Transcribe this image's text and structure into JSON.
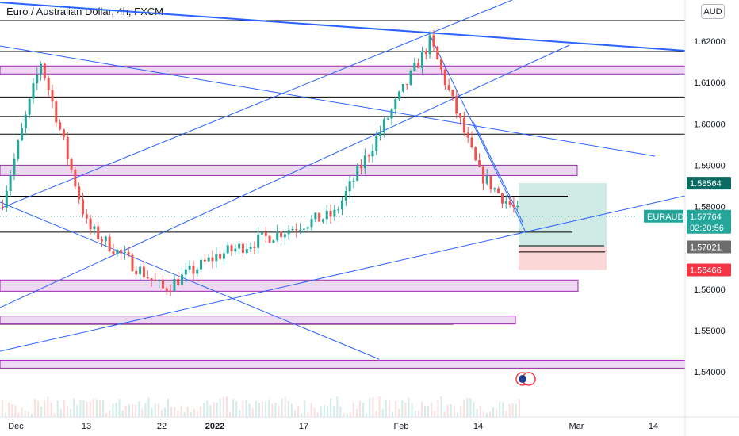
{
  "symbol": {
    "title": "Euro / Australian Dollar, 4h, FXCM",
    "currency_button": "AUD"
  },
  "colors": {
    "up": "#26a69a",
    "down": "#ef5350",
    "trendline": "#2962ff",
    "zone_fill": "#e1bee7",
    "zone_border": "#9c27b0",
    "level_line": "#000000",
    "profit_zone": "#cfe9e4",
    "loss_zone": "#fbd7d8",
    "price_tag": "#26a69a",
    "entry_tag": "#6d6d6d",
    "stop_tag": "#f23645",
    "target_tag": "#0b6b63"
  },
  "chart_data": {
    "type": "candlestick",
    "title": "Euro / Australian Dollar, 4h, FXCM",
    "y_axis": {
      "ticks": [
        "1.62000",
        "1.61000",
        "1.60000",
        "1.59000",
        "1.58000",
        "1.57000",
        "1.56000",
        "1.55000",
        "1.54000"
      ],
      "range": [
        1.5365,
        1.6265
      ]
    },
    "x_axis": {
      "ticks": [
        "Dec",
        "13",
        "22",
        "2022",
        "17",
        "Feb",
        "14",
        "Mar",
        "14"
      ]
    },
    "series": [
      {
        "name": "EURAUD",
        "anchors": [
          [
            "Dec",
            1.58
          ],
          [
            "5",
            1.615
          ],
          [
            "13",
            1.575
          ],
          [
            "22",
            1.56
          ],
          [
            "2022",
            1.568
          ],
          [
            "17",
            1.576
          ],
          [
            "Jan 24",
            1.578
          ],
          [
            "Feb",
            1.62
          ],
          [
            "14",
            1.588
          ],
          [
            "Feb 20",
            1.5776
          ]
        ]
      }
    ],
    "last_price": 1.57764,
    "price_labels": {
      "current": "1.57764",
      "countdown": "02:20:56",
      "symbol_tag": "EURAUD",
      "target": "1.58564",
      "entry": "1.57021",
      "stop": "1.56466"
    },
    "horizontal_levels": [
      1.625,
      1.6175,
      1.6065,
      1.6018,
      1.5975,
      1.5825,
      1.5738,
      1.5705,
      1.569,
      1.5515
    ],
    "zones": [
      {
        "top": 1.614,
        "bottom": 1.6128
      },
      {
        "top": 1.59,
        "bottom": 1.5875
      },
      {
        "top": 1.5622,
        "bottom": 1.5595
      },
      {
        "top": 1.5535,
        "bottom": 1.5525
      },
      {
        "top": 1.5428,
        "bottom": 1.541
      }
    ],
    "grid": false,
    "legend": "none"
  }
}
